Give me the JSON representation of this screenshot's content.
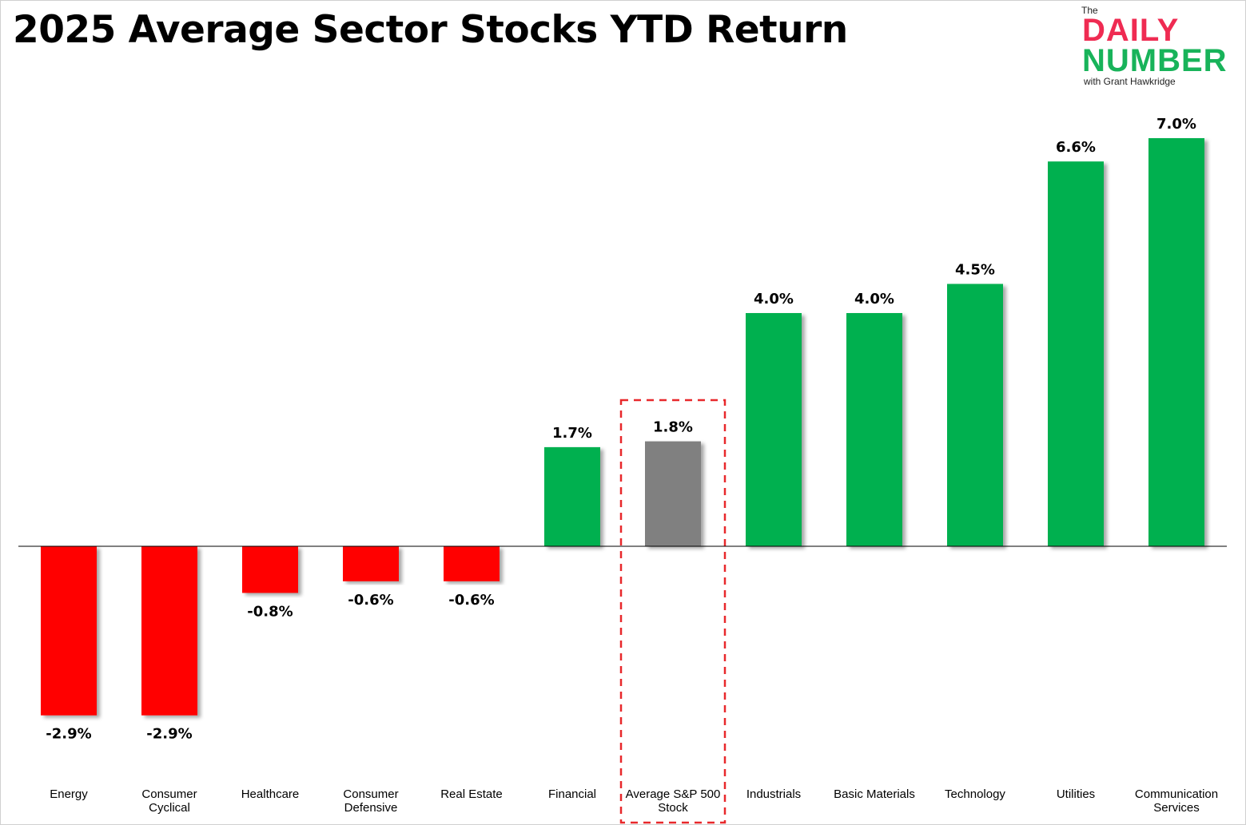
{
  "title": "2025 Average Sector Stocks YTD Return",
  "logo": {
    "the": "The",
    "daily": "DAILY",
    "number": "NUMBER",
    "with": "with Grant Hawkridge",
    "colors": {
      "daily": "#ef2b52",
      "number": "#18b35a"
    }
  },
  "chart_data": {
    "type": "bar",
    "title": "2025 Average Sector Stocks YTD Return",
    "xlabel": "",
    "ylabel": "",
    "grid": false,
    "legend": "none",
    "categories": [
      [
        "Energy"
      ],
      [
        "Consumer",
        "Cyclical"
      ],
      [
        "Healthcare"
      ],
      [
        "Consumer",
        "Defensive"
      ],
      [
        "Real Estate"
      ],
      [
        "Financial"
      ],
      [
        "Average S&P 500",
        "Stock"
      ],
      [
        "Industrials"
      ],
      [
        "Basic Materials"
      ],
      [
        "Technology"
      ],
      [
        "Utilities"
      ],
      [
        "Communication",
        "Services"
      ]
    ],
    "values": [
      -2.9,
      -2.9,
      -0.8,
      -0.6,
      -0.6,
      1.7,
      1.8,
      4.0,
      4.0,
      4.5,
      6.6,
      7.0
    ],
    "labels": [
      "-2.9%",
      "-2.9%",
      "-0.8%",
      "-0.6%",
      "-0.6%",
      "1.7%",
      "1.8%",
      "4.0%",
      "4.0%",
      "4.5%",
      "6.6%",
      "7.0%"
    ],
    "highlighted_category": "Average S&P 500 Stock",
    "colors": {
      "positive": "#00b050",
      "negative": "#ff0000",
      "benchmark": "#808080",
      "highlight_box": "#e8282b"
    }
  }
}
